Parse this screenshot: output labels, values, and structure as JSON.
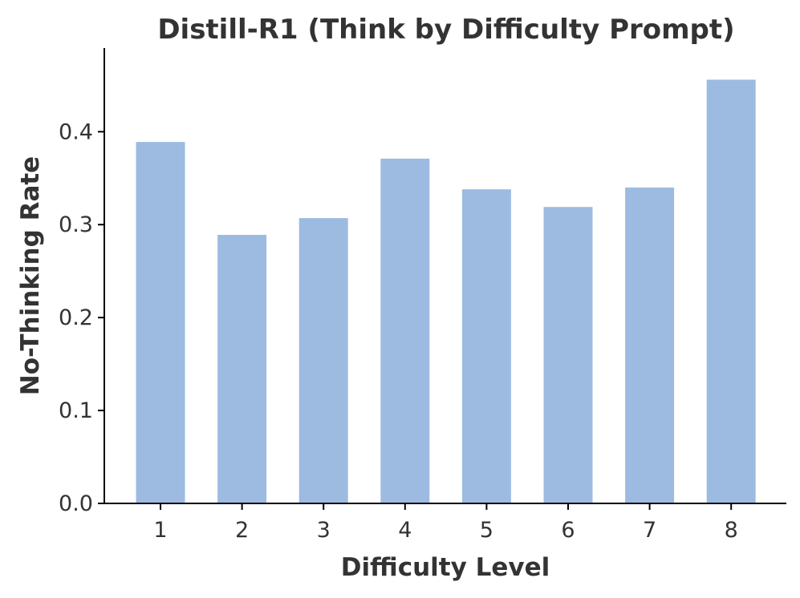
{
  "chart_data": {
    "type": "bar",
    "title": "Distill-R1 (Think by Difficulty Prompt)",
    "xlabel": "Difficulty Level",
    "ylabel": "No-Thinking Rate",
    "categories": [
      "1",
      "2",
      "3",
      "4",
      "5",
      "6",
      "7",
      "8"
    ],
    "values": [
      0.389,
      0.289,
      0.307,
      0.371,
      0.338,
      0.319,
      0.34,
      0.456
    ],
    "ylim": [
      0,
      0.49
    ],
    "yticks": [
      0.0,
      0.1,
      0.2,
      0.3,
      0.4
    ],
    "ytick_labels": [
      "0.0",
      "0.1",
      "0.2",
      "0.3",
      "0.4"
    ],
    "bar_color": "#9dbbe1",
    "grid": false,
    "legend": "none"
  }
}
